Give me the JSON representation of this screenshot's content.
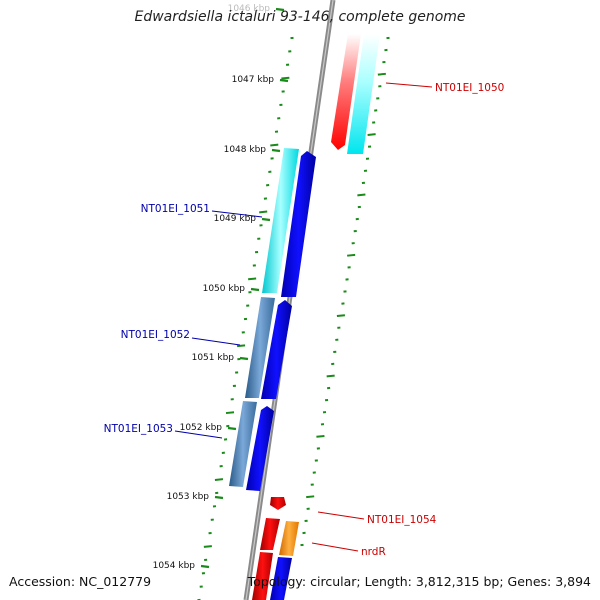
{
  "title": "Edwardsiella ictaluri 93-146, complete genome",
  "footer": {
    "accession": "Accession: NC_012779",
    "topology": "Topology: circular; Length: 3,812,315 bp; Genes: 3,894"
  },
  "ruler": {
    "unit": "kbp",
    "ticks": [
      {
        "label": "1046 kbp",
        "faded": true
      },
      {
        "label": "1047 kbp"
      },
      {
        "label": "1048 kbp"
      },
      {
        "label": "1049 kbp"
      },
      {
        "label": "1050 kbp"
      },
      {
        "label": "1051 kbp"
      },
      {
        "label": "1052 kbp"
      },
      {
        "label": "1053 kbp"
      },
      {
        "label": "1054 kbp"
      }
    ]
  },
  "colors": {
    "backbone": "#8a8a8a",
    "tick": "#1a8a1a",
    "label_red": "#cc0000",
    "label_blue": "#0000aa",
    "cds_red": "#ff0000",
    "cds_blue": "#0000ff",
    "cds_cyan": "#00e5ee",
    "cds_steel": "#4682b4",
    "cds_orange": "#ff8c00"
  },
  "features": [
    {
      "name": "NT01EI_1050",
      "strand": "+",
      "color": "label_red"
    },
    {
      "name": "NT01EI_1051",
      "strand": "-",
      "color": "label_blue"
    },
    {
      "name": "NT01EI_1052",
      "strand": "-",
      "color": "label_blue"
    },
    {
      "name": "NT01EI_1053",
      "strand": "-",
      "color": "label_blue"
    },
    {
      "name": "NT01EI_1054",
      "strand": "+",
      "color": "label_red"
    },
    {
      "name": "nrdR",
      "strand": "+",
      "color": "label_red"
    }
  ]
}
